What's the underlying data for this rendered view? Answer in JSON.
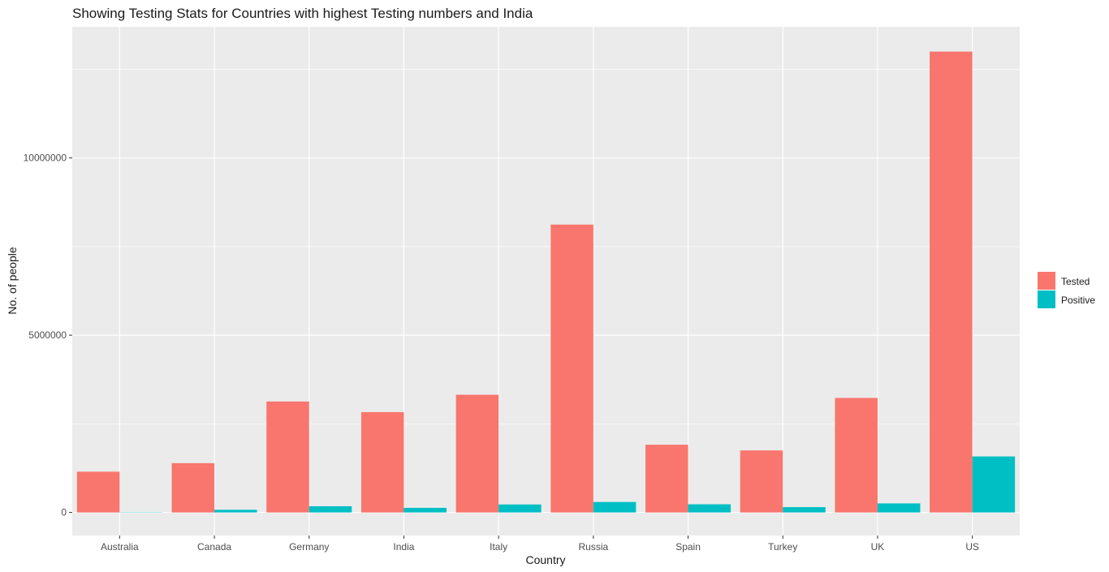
{
  "chart_data": {
    "type": "bar",
    "title": "Showing Testing Stats for Countries with highest Testing numbers and India",
    "xlabel": "Country",
    "ylabel": "No. of people",
    "categories": [
      "Australia",
      "Canada",
      "Germany",
      "India",
      "Italy",
      "Russia",
      "Spain",
      "Turkey",
      "UK",
      "US"
    ],
    "series": [
      {
        "name": "Tested",
        "color": "#F8766D",
        "values": [
          1150000,
          1390000,
          3130000,
          2830000,
          3320000,
          8120000,
          1910000,
          1750000,
          3230000,
          13000000
        ]
      },
      {
        "name": "Positive",
        "color": "#00BFC4",
        "values": [
          7000,
          75000,
          175000,
          130000,
          225000,
          295000,
          230000,
          150000,
          255000,
          1580000
        ]
      }
    ],
    "ylim": [
      -650000,
      13700000
    ],
    "yticks": [
      0,
      5000000,
      10000000
    ],
    "ytick_labels": [
      "0",
      "5000000",
      "10000000"
    ],
    "grid": true,
    "legend_position": "right",
    "panel_color": "#EBEBEB"
  }
}
